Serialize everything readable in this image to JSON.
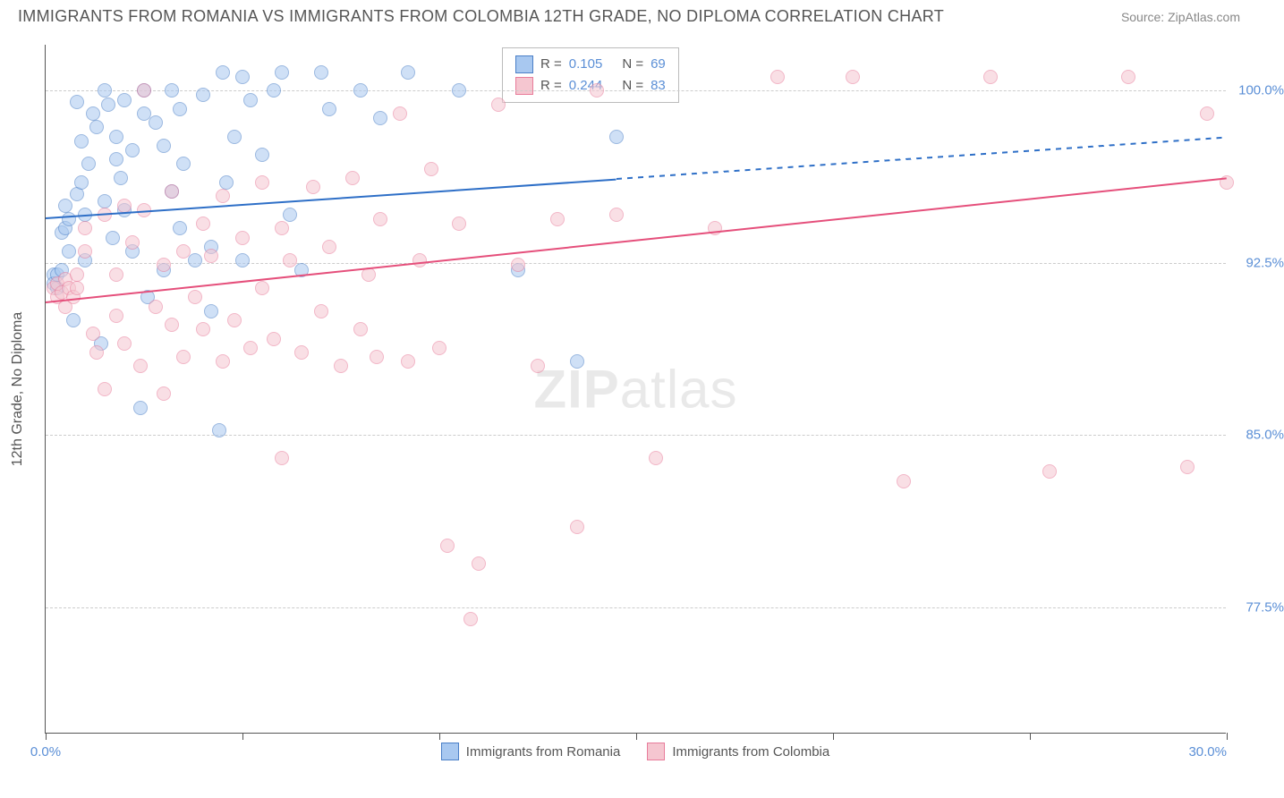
{
  "header": {
    "title": "IMMIGRANTS FROM ROMANIA VS IMMIGRANTS FROM COLOMBIA 12TH GRADE, NO DIPLOMA CORRELATION CHART",
    "source": "Source: ZipAtlas.com"
  },
  "chart": {
    "type": "scatter",
    "y_axis_label": "12th Grade, No Diploma",
    "xlim": [
      0,
      30
    ],
    "ylim": [
      72,
      102
    ],
    "y_ticks": [
      {
        "v": 100.0,
        "label": "100.0%"
      },
      {
        "v": 92.5,
        "label": "92.5%"
      },
      {
        "v": 85.0,
        "label": "85.0%"
      },
      {
        "v": 77.5,
        "label": "77.5%"
      }
    ],
    "x_tick_positions": [
      0,
      5,
      10,
      15,
      20,
      25,
      30
    ],
    "x_tick_labels": {
      "min": "0.0%",
      "max": "30.0%"
    },
    "grid_color": "#cccccc",
    "background_color": "#ffffff",
    "axis_color": "#555555",
    "tick_label_color": "#5b8fd6",
    "marker_radius": 8,
    "marker_opacity": 0.55,
    "series": [
      {
        "id": "a",
        "name": "Immigrants from Romania",
        "fill": "#a8c8f0",
        "stroke": "#4a7fc7",
        "trend_color": "#2e6fc7",
        "R": "0.105",
        "N": "69",
        "trend": {
          "x1": 0,
          "y1": 94.5,
          "x2": 30,
          "y2": 98.0,
          "solid_to_x": 14.5
        },
        "points": [
          [
            0.2,
            92.0
          ],
          [
            0.2,
            91.6
          ],
          [
            0.3,
            92.0
          ],
          [
            0.3,
            91.4
          ],
          [
            0.4,
            92.2
          ],
          [
            0.4,
            93.8
          ],
          [
            0.5,
            94.0
          ],
          [
            0.5,
            95.0
          ],
          [
            0.6,
            94.4
          ],
          [
            0.6,
            93.0
          ],
          [
            0.7,
            90.0
          ],
          [
            0.8,
            95.5
          ],
          [
            0.8,
            99.5
          ],
          [
            0.9,
            96.0
          ],
          [
            0.9,
            97.8
          ],
          [
            1.0,
            94.6
          ],
          [
            1.0,
            92.6
          ],
          [
            1.1,
            96.8
          ],
          [
            1.2,
            99.0
          ],
          [
            1.3,
            98.4
          ],
          [
            1.4,
            89.0
          ],
          [
            1.5,
            95.2
          ],
          [
            1.5,
            100.0
          ],
          [
            1.6,
            99.4
          ],
          [
            1.7,
            93.6
          ],
          [
            1.8,
            97.0
          ],
          [
            1.8,
            98.0
          ],
          [
            1.9,
            96.2
          ],
          [
            2.0,
            99.6
          ],
          [
            2.0,
            94.8
          ],
          [
            2.2,
            93.0
          ],
          [
            2.2,
            97.4
          ],
          [
            2.4,
            86.2
          ],
          [
            2.5,
            100.0
          ],
          [
            2.5,
            99.0
          ],
          [
            2.6,
            91.0
          ],
          [
            2.8,
            98.6
          ],
          [
            3.0,
            97.6
          ],
          [
            3.0,
            92.2
          ],
          [
            3.2,
            95.6
          ],
          [
            3.2,
            100.0
          ],
          [
            3.4,
            99.2
          ],
          [
            3.4,
            94.0
          ],
          [
            3.5,
            96.8
          ],
          [
            3.8,
            92.6
          ],
          [
            4.0,
            99.8
          ],
          [
            4.2,
            93.2
          ],
          [
            4.2,
            90.4
          ],
          [
            4.4,
            85.2
          ],
          [
            4.5,
            100.8
          ],
          [
            4.6,
            96.0
          ],
          [
            4.8,
            98.0
          ],
          [
            5.0,
            92.6
          ],
          [
            5.0,
            100.6
          ],
          [
            5.2,
            99.6
          ],
          [
            5.5,
            97.2
          ],
          [
            5.8,
            100.0
          ],
          [
            6.0,
            100.8
          ],
          [
            6.2,
            94.6
          ],
          [
            6.5,
            92.2
          ],
          [
            7.0,
            100.8
          ],
          [
            7.2,
            99.2
          ],
          [
            8.0,
            100.0
          ],
          [
            8.5,
            98.8
          ],
          [
            9.2,
            100.8
          ],
          [
            10.5,
            100.0
          ],
          [
            12.0,
            92.2
          ],
          [
            13.5,
            88.2
          ],
          [
            14.5,
            98.0
          ]
        ]
      },
      {
        "id": "b",
        "name": "Immigrants from Colombia",
        "fill": "#f5c6d0",
        "stroke": "#e87c9a",
        "trend_color": "#e54f7b",
        "R": "0.244",
        "N": "83",
        "trend": {
          "x1": 0,
          "y1": 90.8,
          "x2": 30,
          "y2": 96.2,
          "solid_to_x": 30
        },
        "points": [
          [
            0.2,
            91.4
          ],
          [
            0.3,
            91.6
          ],
          [
            0.3,
            91.0
          ],
          [
            0.4,
            91.2
          ],
          [
            0.5,
            91.8
          ],
          [
            0.5,
            90.6
          ],
          [
            0.6,
            91.4
          ],
          [
            0.7,
            91.0
          ],
          [
            0.8,
            92.0
          ],
          [
            0.8,
            91.4
          ],
          [
            1.0,
            94.0
          ],
          [
            1.0,
            93.0
          ],
          [
            1.2,
            89.4
          ],
          [
            1.3,
            88.6
          ],
          [
            1.5,
            94.6
          ],
          [
            1.5,
            87.0
          ],
          [
            1.8,
            90.2
          ],
          [
            1.8,
            92.0
          ],
          [
            2.0,
            89.0
          ],
          [
            2.0,
            95.0
          ],
          [
            2.2,
            93.4
          ],
          [
            2.4,
            88.0
          ],
          [
            2.5,
            100.0
          ],
          [
            2.5,
            94.8
          ],
          [
            2.8,
            90.6
          ],
          [
            3.0,
            86.8
          ],
          [
            3.0,
            92.4
          ],
          [
            3.2,
            95.6
          ],
          [
            3.2,
            89.8
          ],
          [
            3.5,
            93.0
          ],
          [
            3.5,
            88.4
          ],
          [
            3.8,
            91.0
          ],
          [
            4.0,
            94.2
          ],
          [
            4.0,
            89.6
          ],
          [
            4.2,
            92.8
          ],
          [
            4.5,
            88.2
          ],
          [
            4.5,
            95.4
          ],
          [
            4.8,
            90.0
          ],
          [
            5.0,
            93.6
          ],
          [
            5.2,
            88.8
          ],
          [
            5.5,
            96.0
          ],
          [
            5.5,
            91.4
          ],
          [
            5.8,
            89.2
          ],
          [
            6.0,
            94.0
          ],
          [
            6.0,
            84.0
          ],
          [
            6.2,
            92.6
          ],
          [
            6.5,
            88.6
          ],
          [
            6.8,
            95.8
          ],
          [
            7.0,
            90.4
          ],
          [
            7.2,
            93.2
          ],
          [
            7.5,
            88.0
          ],
          [
            7.8,
            96.2
          ],
          [
            8.0,
            89.6
          ],
          [
            8.2,
            92.0
          ],
          [
            8.4,
            88.4
          ],
          [
            8.5,
            94.4
          ],
          [
            9.0,
            99.0
          ],
          [
            9.2,
            88.2
          ],
          [
            9.5,
            92.6
          ],
          [
            9.8,
            96.6
          ],
          [
            10.0,
            88.8
          ],
          [
            10.2,
            80.2
          ],
          [
            10.5,
            94.2
          ],
          [
            10.8,
            77.0
          ],
          [
            11.0,
            79.4
          ],
          [
            11.5,
            99.4
          ],
          [
            12.0,
            92.4
          ],
          [
            12.5,
            88.0
          ],
          [
            13.0,
            94.4
          ],
          [
            13.5,
            81.0
          ],
          [
            14.0,
            100.0
          ],
          [
            14.5,
            94.6
          ],
          [
            15.5,
            84.0
          ],
          [
            17.0,
            94.0
          ],
          [
            18.6,
            100.6
          ],
          [
            20.5,
            100.6
          ],
          [
            21.8,
            83.0
          ],
          [
            24.0,
            100.6
          ],
          [
            25.5,
            83.4
          ],
          [
            27.5,
            100.6
          ],
          [
            29.0,
            83.6
          ],
          [
            29.5,
            99.0
          ],
          [
            30.0,
            96.0
          ]
        ]
      }
    ],
    "legend": {
      "rows": [
        {
          "series": "a",
          "R_label": "R =",
          "N_label": "N ="
        },
        {
          "series": "b",
          "R_label": "R =",
          "N_label": "N ="
        }
      ]
    },
    "watermark": {
      "bold": "ZIP",
      "rest": "atlas"
    }
  }
}
